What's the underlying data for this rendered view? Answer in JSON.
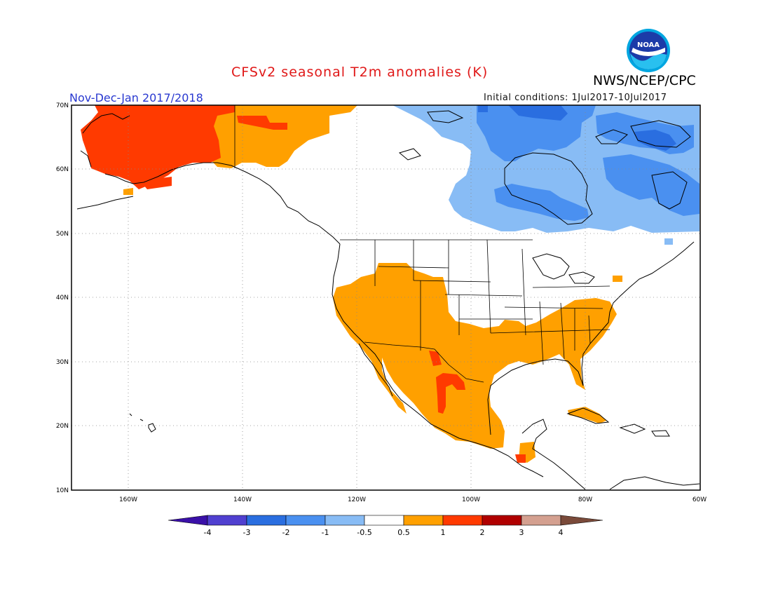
{
  "header": {
    "title": "CFSv2 seasonal T2m anomalies (K)",
    "agency": "NWS/NCEP/CPC",
    "season": "Nov-Dec-Jan 2017/2018",
    "initial_conditions": "Initial conditions: 1Jul2017-10Jul2017",
    "logo_text": "NOAA"
  },
  "axes": {
    "lat_labels": [
      "70N",
      "60N",
      "50N",
      "40N",
      "30N",
      "20N",
      "10N"
    ],
    "lon_labels": [
      "160W",
      "140W",
      "120W",
      "100W",
      "80W",
      "60W"
    ],
    "lat_range": [
      10,
      70
    ],
    "lon_range": [
      -170,
      -60
    ],
    "grid": "dotted"
  },
  "colorbar": {
    "ticks": [
      "-4",
      "-3",
      "-2",
      "-1",
      "-0.5",
      "0.5",
      "1",
      "2",
      "3",
      "4"
    ],
    "colors": [
      "#3a10a8",
      "#5040d0",
      "#2a6ee0",
      "#4a90f0",
      "#88bcf5",
      "#ffffff",
      "#ffa000",
      "#ff3a00",
      "#b00000",
      "#d4a090",
      "#7a4a3a"
    ]
  },
  "colors": {
    "warm1": "#ffa000",
    "warm2": "#ff3a00",
    "warm3": "#e83000",
    "cool1": "#88bcf5",
    "cool2": "#4a90f0",
    "cool3": "#2a6ee0",
    "title": "#e01818",
    "season": "#2838d0"
  }
}
